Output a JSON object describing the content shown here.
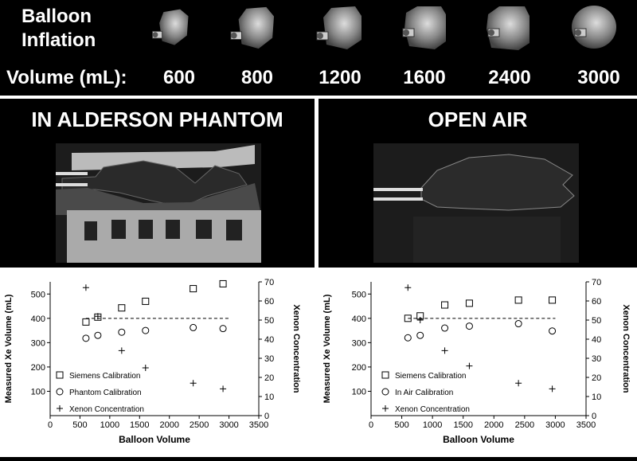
{
  "header": {
    "title_line1": "Balloon",
    "title_line2": "Inflation",
    "volume_label": "Volume (mL):",
    "volumes": [
      "600",
      "800",
      "1200",
      "1600",
      "2400",
      "3000"
    ]
  },
  "left_panel": {
    "heading": "IN ALDERSON PHANTOM"
  },
  "right_panel": {
    "heading": "OPEN AIR"
  },
  "chart_data": [
    {
      "type": "scatter",
      "xlabel": "Balloon Volume",
      "ylabel": "Measured Xe Volume (mL)",
      "y2label": "Xenon Concentration",
      "xlim": [
        0,
        3500
      ],
      "ylim": [
        0,
        550
      ],
      "y2lim": [
        0,
        70
      ],
      "xticks": [
        "0",
        "500",
        "1000",
        "1500",
        "2000",
        "2500",
        "3000",
        "3500"
      ],
      "yticks": [
        "100",
        "200",
        "300",
        "400",
        "500"
      ],
      "y2ticks": [
        "0",
        "10",
        "20",
        "30",
        "40",
        "50",
        "60",
        "70"
      ],
      "reference_line_y": 400,
      "series": [
        {
          "name": "Siemens Calibration",
          "marker": "square",
          "axis": "left",
          "x": [
            600,
            800,
            1200,
            1600,
            2400,
            2900
          ],
          "y": [
            385,
            405,
            443,
            470,
            522,
            542
          ]
        },
        {
          "name": "Phantom Calibration",
          "marker": "circle",
          "axis": "left",
          "x": [
            600,
            800,
            1200,
            1600,
            2400,
            2900
          ],
          "y": [
            318,
            330,
            343,
            350,
            362,
            358
          ]
        },
        {
          "name": "Xenon Concentration",
          "marker": "plus",
          "axis": "right",
          "x": [
            600,
            800,
            1200,
            1600,
            2400,
            2900
          ],
          "y": [
            67,
            52,
            34,
            25,
            17,
            14
          ]
        }
      ]
    },
    {
      "type": "scatter",
      "xlabel": "Balloon Volume",
      "ylabel": "Measured Xe Volume (mL)",
      "y2label": "Xenon Concentration",
      "xlim": [
        0,
        3500
      ],
      "ylim": [
        0,
        550
      ],
      "y2lim": [
        0,
        70
      ],
      "xticks": [
        "0",
        "500",
        "1000",
        "1500",
        "2000",
        "2500",
        "3000",
        "3500"
      ],
      "yticks": [
        "100",
        "200",
        "300",
        "400",
        "500"
      ],
      "y2ticks": [
        "0",
        "10",
        "20",
        "30",
        "40",
        "50",
        "60",
        "70"
      ],
      "reference_line_y": 400,
      "series": [
        {
          "name": "Siemens Calibration",
          "marker": "square",
          "axis": "left",
          "x": [
            600,
            800,
            1200,
            1600,
            2400,
            2950
          ],
          "y": [
            400,
            410,
            455,
            462,
            475,
            475
          ]
        },
        {
          "name": "In Air Calibration",
          "marker": "circle",
          "axis": "left",
          "x": [
            600,
            800,
            1200,
            1600,
            2400,
            2950
          ],
          "y": [
            320,
            330,
            360,
            368,
            378,
            348
          ]
        },
        {
          "name": "Xenon Concentration",
          "marker": "plus",
          "axis": "right",
          "x": [
            600,
            800,
            1200,
            1600,
            2400,
            2950
          ],
          "y": [
            67,
            50,
            34,
            26,
            17,
            14
          ]
        }
      ]
    }
  ]
}
